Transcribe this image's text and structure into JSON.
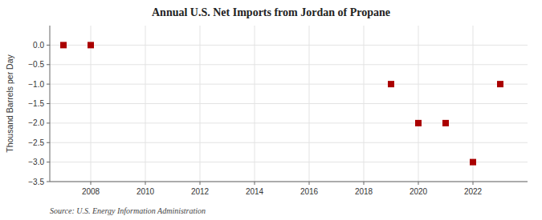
{
  "chart_data": {
    "type": "scatter",
    "title": "Annual U.S. Net Imports from Jordan of Propane",
    "ylabel": "Thousand Barrels per Day",
    "annotations": [
      "Source: U.S. Energy Information Administration"
    ],
    "x": [
      2007,
      2008,
      2019,
      2020,
      2021,
      2022,
      2023
    ],
    "values": [
      0,
      0,
      -1,
      -2,
      -2,
      -3,
      -1
    ],
    "color": "#aa0000",
    "marker": "square",
    "xlim": [
      2006.5,
      2024
    ],
    "xticks": [
      2008,
      2010,
      2012,
      2014,
      2016,
      2018,
      2020,
      2022
    ],
    "ylim": [
      -3.5,
      0.5
    ],
    "yticks": [
      {
        "value": 0.0,
        "label": "0.0"
      },
      {
        "value": -0.5,
        "label": "−0.5"
      },
      {
        "value": -1.0,
        "label": "−1.0"
      },
      {
        "value": -1.5,
        "label": "−1.5"
      },
      {
        "value": -2.0,
        "label": "−2.0"
      },
      {
        "value": -2.5,
        "label": "−2.5"
      },
      {
        "value": -3.0,
        "label": "−3.0"
      },
      {
        "value": -3.5,
        "label": "−3.5"
      }
    ],
    "grid": true
  }
}
